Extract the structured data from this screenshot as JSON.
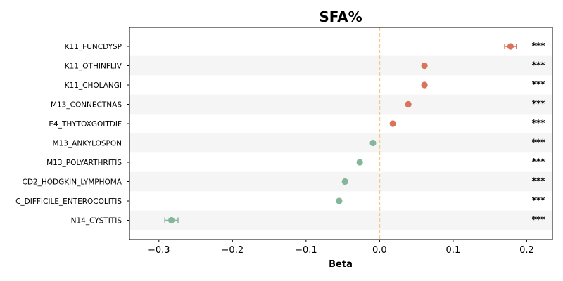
{
  "chart_data": {
    "type": "scatter",
    "title": "SFA%",
    "xlabel": "Beta",
    "ylabel": "",
    "xlim": [
      -0.34,
      0.235
    ],
    "xticks": [
      -0.3,
      -0.2,
      -0.1,
      0.0,
      0.1,
      0.2
    ],
    "xtick_labels": [
      "−0.3",
      "−0.2",
      "−0.1",
      "0.0",
      "0.1",
      "0.2"
    ],
    "reference_line": {
      "x": 0.0,
      "color": "#f5c98a",
      "style": "dashed"
    },
    "band_color": "#f5f5f5",
    "positive_color": "#d9735a",
    "negative_color": "#85b59a",
    "grid": false,
    "points": [
      {
        "label": "K11_FUNCDYSP",
        "beta": 0.178,
        "ci_low": 0.17,
        "ci_high": 0.186,
        "significance": "***"
      },
      {
        "label": "K11_OTHINFLIV",
        "beta": 0.061,
        "ci_low": 0.061,
        "ci_high": 0.061,
        "significance": "***"
      },
      {
        "label": "K11_CHOLANGI",
        "beta": 0.061,
        "ci_low": 0.061,
        "ci_high": 0.061,
        "significance": "***"
      },
      {
        "label": "M13_CONNECTNAS",
        "beta": 0.039,
        "ci_low": 0.039,
        "ci_high": 0.039,
        "significance": "***"
      },
      {
        "label": "E4_THYTOXGOITDIF",
        "beta": 0.018,
        "ci_low": 0.018,
        "ci_high": 0.018,
        "significance": "***"
      },
      {
        "label": "M13_ANKYLOSPON",
        "beta": -0.009,
        "ci_low": -0.009,
        "ci_high": -0.009,
        "significance": "***"
      },
      {
        "label": "M13_POLYARTHRITIS",
        "beta": -0.027,
        "ci_low": -0.027,
        "ci_high": -0.027,
        "significance": "***"
      },
      {
        "label": "CD2_HODGKIN_LYMPHOMA",
        "beta": -0.047,
        "ci_low": -0.047,
        "ci_high": -0.047,
        "significance": "***"
      },
      {
        "label": "C_DIFFICILE_ENTEROCOLITIS",
        "beta": -0.055,
        "ci_low": -0.055,
        "ci_high": -0.055,
        "significance": "***"
      },
      {
        "label": "N14_CYSTITIS",
        "beta": -0.283,
        "ci_low": -0.292,
        "ci_high": -0.274,
        "significance": "***"
      }
    ]
  }
}
